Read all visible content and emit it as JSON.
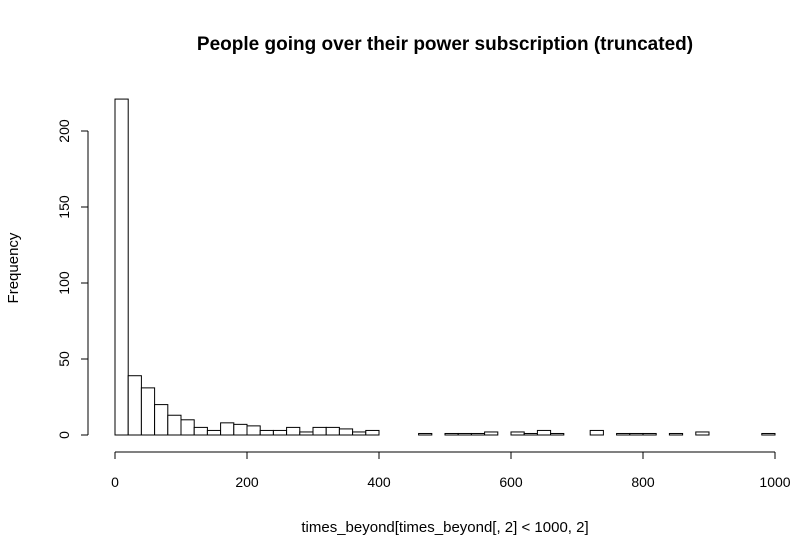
{
  "chart_data": {
    "type": "bar",
    "title": "People going over their power subscription (truncated)",
    "xlabel": "times_beyond[times_beyond[, 2] < 1000, 2]",
    "ylabel": "Frequency",
    "xlim": [
      0,
      1000
    ],
    "ylim": [
      0,
      220
    ],
    "x_ticks": [
      0,
      200,
      400,
      600,
      800,
      1000
    ],
    "y_ticks": [
      0,
      50,
      100,
      150,
      200
    ],
    "bin_width": 20,
    "bin_starts": [
      0,
      20,
      40,
      60,
      80,
      100,
      120,
      140,
      160,
      180,
      200,
      220,
      240,
      260,
      280,
      300,
      320,
      340,
      360,
      380,
      400,
      420,
      440,
      460,
      480,
      500,
      520,
      540,
      560,
      580,
      600,
      620,
      640,
      660,
      680,
      700,
      720,
      740,
      760,
      780,
      800,
      820,
      840,
      860,
      880,
      900,
      920,
      940,
      960,
      980
    ],
    "values": [
      221,
      39,
      31,
      20,
      13,
      10,
      5,
      3,
      8,
      7,
      6,
      3,
      3,
      5,
      2,
      5,
      5,
      4,
      2,
      3,
      0,
      0,
      0,
      1,
      0,
      1,
      1,
      1,
      2,
      0,
      2,
      1,
      3,
      1,
      0,
      0,
      3,
      0,
      1,
      1,
      1,
      0,
      1,
      0,
      2,
      0,
      0,
      0,
      0,
      1
    ],
    "grid": false,
    "legend": "none"
  }
}
